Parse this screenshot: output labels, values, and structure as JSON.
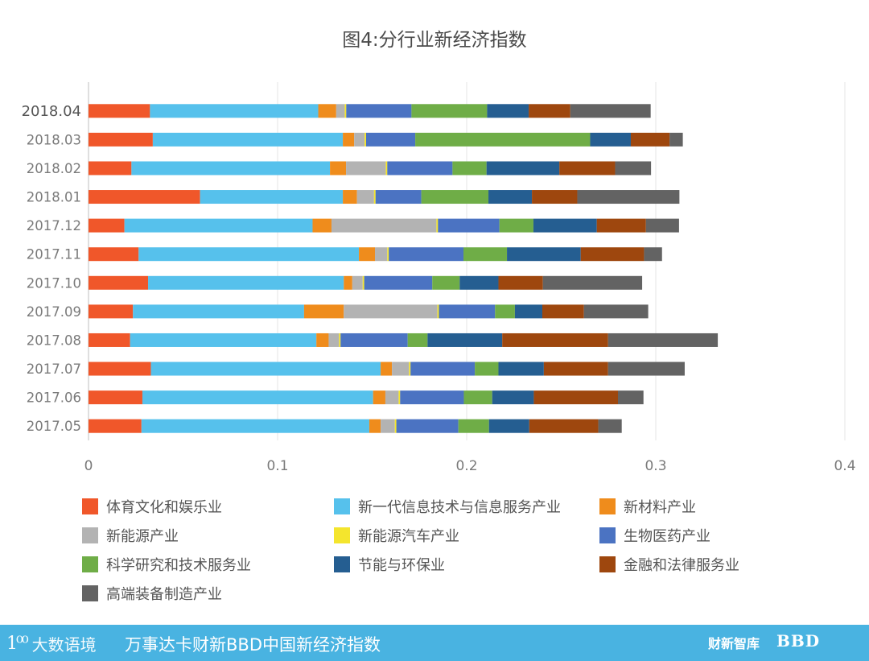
{
  "title": "图4:分行业新经济指数",
  "chart_data": {
    "type": "bar",
    "orientation": "horizontal",
    "stacked": true,
    "categories": [
      "2018.04",
      "2018.03",
      "2018.02",
      "2018.01",
      "2017.12",
      "2017.11",
      "2017.10",
      "2017.09",
      "2017.08",
      "2017.07",
      "2017.06",
      "2017.05"
    ],
    "xlim": [
      0,
      0.4
    ],
    "xticks": [
      "0",
      "0.1",
      "0.2",
      "0.3",
      "0.4"
    ],
    "grid": "vertical",
    "legend_position": "bottom",
    "series": [
      {
        "name": "体育文化和娱乐业",
        "color": "#f0572a",
        "values": [
          0.0325,
          0.034,
          0.0227,
          0.059,
          0.019,
          0.0265,
          0.0315,
          0.0235,
          0.022,
          0.033,
          0.0285,
          0.028
        ]
      },
      {
        "name": "新一代信息技术与信息服务产业",
        "color": "#56c1ec",
        "values": [
          0.089,
          0.1005,
          0.105,
          0.0755,
          0.0995,
          0.1165,
          0.1035,
          0.0905,
          0.0985,
          0.1215,
          0.122,
          0.1205
        ]
      },
      {
        "name": "新材料产业",
        "color": "#ef8c1c",
        "values": [
          0.0095,
          0.006,
          0.0085,
          0.0075,
          0.01,
          0.0085,
          0.0045,
          0.021,
          0.0065,
          0.006,
          0.0065,
          0.006
        ]
      },
      {
        "name": "新能源产业",
        "color": "#b3b3b3",
        "values": [
          0.0045,
          0.0055,
          0.021,
          0.009,
          0.0555,
          0.0065,
          0.0055,
          0.0495,
          0.0055,
          0.009,
          0.007,
          0.0075
        ]
      },
      {
        "name": "新能源汽车产业",
        "color": "#f4e52d",
        "values": [
          0.0008,
          0.0008,
          0.0008,
          0.0008,
          0.0008,
          0.0008,
          0.0008,
          0.0008,
          0.0008,
          0.0008,
          0.0008,
          0.0008
        ]
      },
      {
        "name": "生物医药产业",
        "color": "#4b73c2",
        "values": [
          0.0345,
          0.026,
          0.0345,
          0.0242,
          0.0325,
          0.0395,
          0.036,
          0.0297,
          0.0355,
          0.034,
          0.0337,
          0.0328
        ]
      },
      {
        "name": "科学研究和技术服务业",
        "color": "#6fad47",
        "values": [
          0.04,
          0.0925,
          0.018,
          0.0355,
          0.018,
          0.023,
          0.0145,
          0.0105,
          0.0105,
          0.0125,
          0.015,
          0.0162
        ]
      },
      {
        "name": "节能与环保业",
        "color": "#255e91",
        "values": [
          0.022,
          0.0215,
          0.0385,
          0.023,
          0.0335,
          0.039,
          0.0205,
          0.0145,
          0.0395,
          0.024,
          0.022,
          0.0213
        ]
      },
      {
        "name": "金融和法律服务业",
        "color": "#9e470e",
        "values": [
          0.022,
          0.0205,
          0.0295,
          0.024,
          0.026,
          0.0335,
          0.0235,
          0.022,
          0.056,
          0.034,
          0.0445,
          0.0365
        ]
      },
      {
        "name": "高端装备制造产业",
        "color": "#636363",
        "values": [
          0.0425,
          0.007,
          0.019,
          0.054,
          0.0175,
          0.0095,
          0.0525,
          0.034,
          0.058,
          0.0405,
          0.0135,
          0.0124
        ]
      }
    ]
  },
  "footer": {
    "logo_mark": "1⁰⁰",
    "logo_text": "大数语境",
    "text": "万事达卡财新BBD中国新经济指数",
    "brand1": "财新智库",
    "brand2": "BBD"
  }
}
